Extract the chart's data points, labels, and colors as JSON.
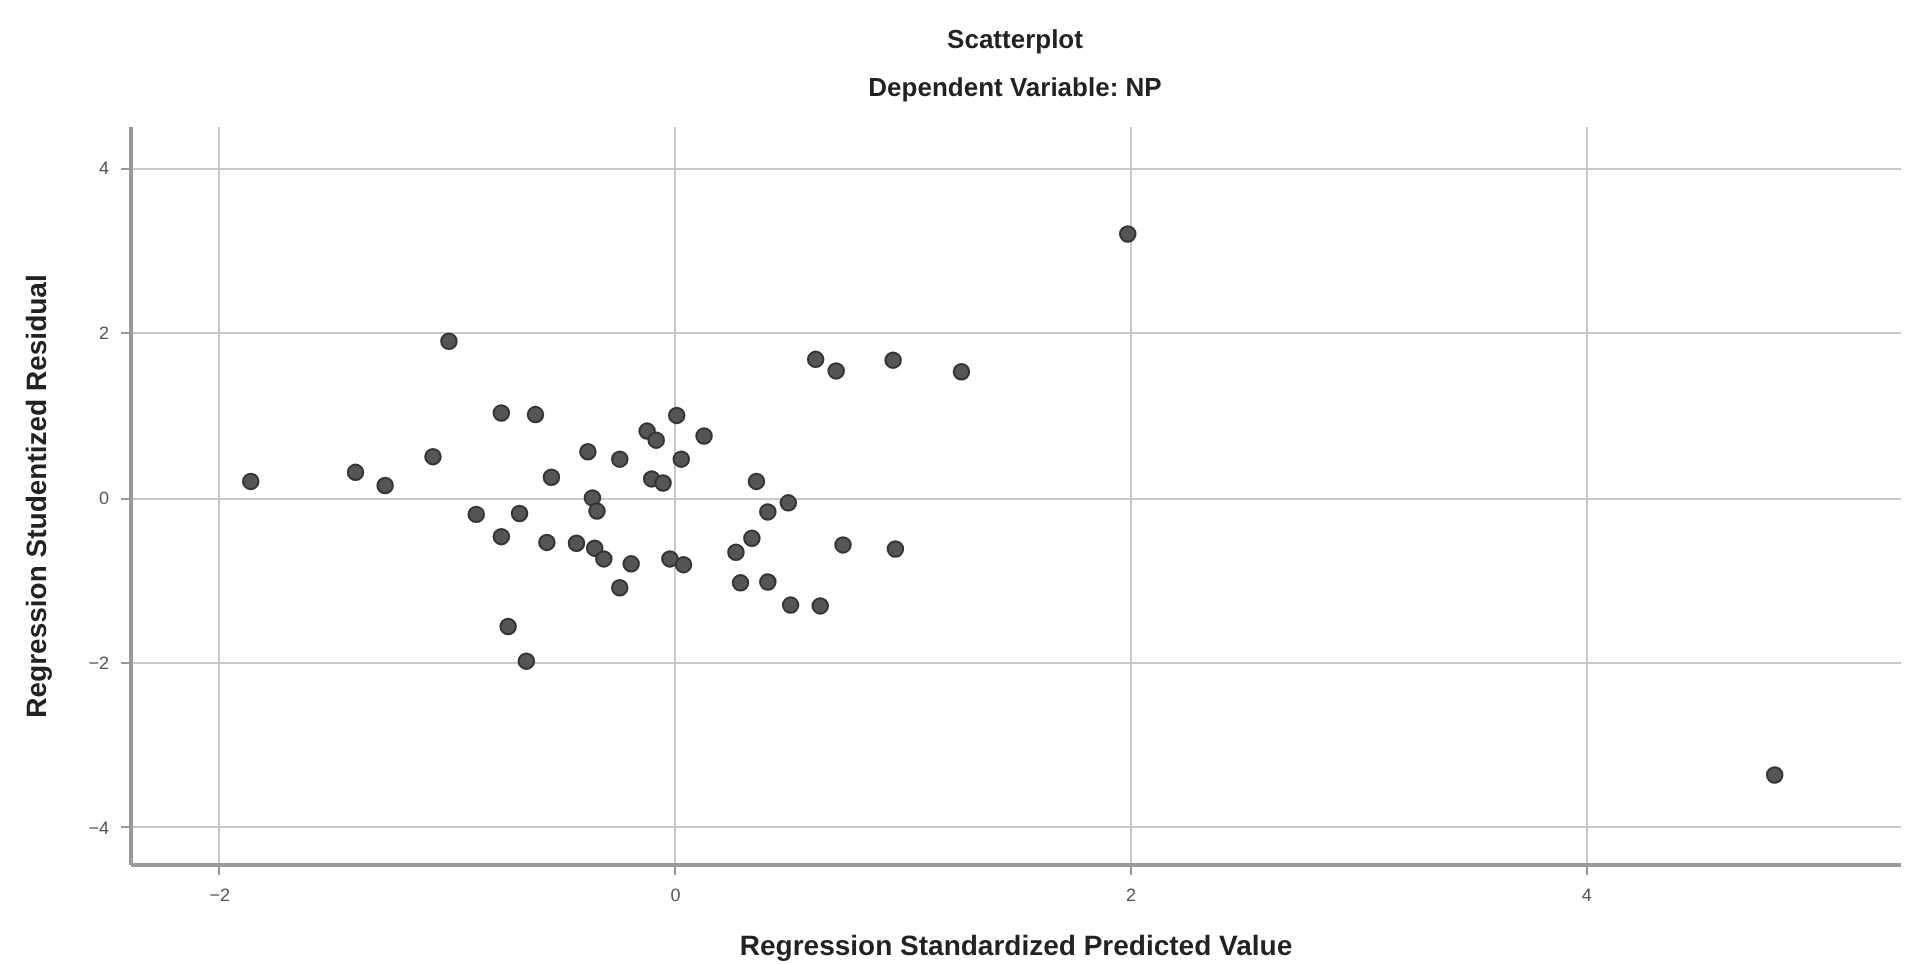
{
  "chart_data": {
    "type": "scatter",
    "title": "Scatterplot",
    "subtitle": "Dependent Variable: NP",
    "xlabel": "Regression Standardized Predicted Value",
    "ylabel": "Regression Studentized Residual",
    "x": [
      -1.86,
      -1.4,
      -1.27,
      -1.06,
      -0.99,
      -0.76,
      -0.61,
      -0.54,
      -0.87,
      -0.68,
      -0.76,
      -0.56,
      -0.73,
      -0.65,
      -0.38,
      -0.24,
      -0.36,
      -0.34,
      -0.43,
      -0.35,
      -0.31,
      -0.19,
      -0.24,
      -0.12,
      -0.08,
      -0.1,
      -0.05,
      0.01,
      0.13,
      0.03,
      -0.02,
      0.04,
      0.36,
      0.41,
      0.5,
      0.34,
      0.27,
      0.29,
      0.41,
      0.51,
      0.64,
      0.62,
      0.71,
      0.96,
      0.74,
      0.97,
      1.26,
      1.99,
      4.83
    ],
    "values": [
      0.19,
      0.3,
      0.14,
      0.49,
      1.89,
      1.02,
      1.0,
      0.24,
      -0.21,
      -0.2,
      -0.48,
      -0.55,
      -1.57,
      -1.99,
      0.55,
      0.46,
      -0.01,
      -0.17,
      -0.56,
      -0.62,
      -0.75,
      -0.81,
      -1.1,
      0.8,
      0.69,
      0.22,
      0.17,
      0.99,
      0.74,
      0.46,
      -0.75,
      -0.82,
      0.19,
      -0.18,
      -0.07,
      -0.5,
      -0.67,
      -1.04,
      -1.03,
      -1.31,
      -1.32,
      1.67,
      1.53,
      1.66,
      -0.58,
      -0.63,
      1.52,
      3.19,
      -3.37
    ],
    "color": "#555555",
    "xlim": [
      -2.39,
      5.38
    ],
    "ylim": [
      -4.45,
      4.5
    ],
    "xticks": [
      -2,
      0,
      2,
      4
    ],
    "yticks": [
      -4,
      -2,
      0,
      2,
      4
    ],
    "grid": true,
    "marker": "circle"
  }
}
